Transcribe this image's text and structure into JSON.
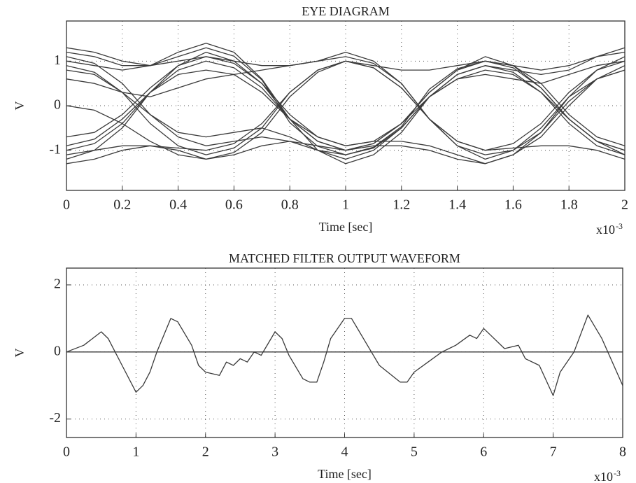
{
  "chart_data": [
    {
      "type": "line",
      "title": "EYE DIAGRAM",
      "x_label": "Time [sec]",
      "y_label": "V",
      "x_scale_base": "x10",
      "x_scale_exponent": "-3",
      "color": "#3a3a3a",
      "grid": true,
      "xlim": [
        0,
        2
      ],
      "ylim": [
        -1.9,
        1.9
      ],
      "xticks": [
        0,
        0.2,
        0.4,
        0.6,
        0.8,
        1,
        1.2,
        1.4,
        1.6,
        1.8,
        2
      ],
      "yticks": [
        -1,
        0,
        1
      ],
      "x": [
        0,
        0.1,
        0.2,
        0.3,
        0.4,
        0.5,
        0.6,
        0.7,
        0.8,
        0.9,
        1,
        1.1,
        1.2,
        1.3,
        1.4,
        1.5,
        1.6,
        1.7,
        1.8,
        1.9,
        2
      ],
      "series": [
        {
          "values": [
            1.2,
            1.1,
            0.9,
            0.9,
            1.1,
            1.3,
            1.11,
            0.58,
            -0.38,
            -0.91,
            -1.1,
            -0.93,
            -0.47,
            0.37,
            0.83,
            1.0,
            0.9,
            0.8,
            0.9,
            1.1,
            1.3
          ]
        },
        {
          "values": [
            -1.0,
            -0.85,
            -0.4,
            0.3,
            0.8,
            1.0,
            0.85,
            0.4,
            -0.3,
            -0.8,
            -1.0,
            -0.85,
            -0.4,
            0.3,
            0.8,
            1.1,
            0.9,
            0.4,
            -0.3,
            -0.8,
            -1.0
          ]
        },
        {
          "values": [
            0.9,
            0.75,
            0.3,
            -0.4,
            -0.9,
            -1.1,
            -0.95,
            -0.5,
            0.3,
            0.8,
            1.0,
            0.85,
            0.4,
            -0.3,
            -0.8,
            -1.0,
            -0.85,
            -0.4,
            0.3,
            0.8,
            1.0
          ]
        },
        {
          "values": [
            -1.3,
            -1.2,
            -1.0,
            -0.9,
            -1.0,
            -1.2,
            -1.05,
            -0.6,
            0.2,
            0.75,
            1.0,
            0.9,
            0.8,
            0.8,
            0.9,
            1.0,
            0.85,
            0.4,
            -0.3,
            -0.8,
            -1.1
          ]
        },
        {
          "values": [
            0.8,
            0.7,
            0.3,
            -0.2,
            -0.6,
            -0.7,
            -0.6,
            -0.5,
            -0.7,
            -1.0,
            -1.2,
            -1.0,
            -0.5,
            0.2,
            0.6,
            0.7,
            0.6,
            0.5,
            0.7,
            0.9,
            1.0
          ]
        },
        {
          "values": [
            1.0,
            0.9,
            0.8,
            0.9,
            1.2,
            1.4,
            1.2,
            0.6,
            -0.3,
            -1.0,
            -1.3,
            -1.1,
            -0.6,
            0.2,
            0.7,
            0.9,
            0.8,
            0.7,
            0.8,
            1.1,
            1.2
          ]
        },
        {
          "values": [
            -0.7,
            -0.6,
            -0.2,
            0.4,
            0.9,
            1.1,
            1.0,
            0.9,
            0.9,
            1.0,
            1.1,
            0.95,
            0.5,
            -0.3,
            -0.9,
            -1.2,
            -1.0,
            -0.5,
            0.2,
            0.6,
            0.8
          ]
        },
        {
          "values": [
            0.0,
            -0.1,
            -0.4,
            -0.8,
            -1.1,
            -1.2,
            -1.1,
            -0.9,
            -0.8,
            -0.9,
            -1.0,
            -0.85,
            -0.4,
            0.3,
            0.8,
            1.0,
            0.9,
            0.5,
            -0.2,
            -0.7,
            -0.9
          ]
        },
        {
          "values": [
            -1.1,
            -1.0,
            -0.9,
            -0.9,
            -0.95,
            -1.0,
            -0.85,
            -0.4,
            0.3,
            0.8,
            1.0,
            0.85,
            0.4,
            -0.3,
            -0.8,
            -1.0,
            -0.95,
            -0.9,
            -0.9,
            -1.0,
            -1.2
          ]
        },
        {
          "values": [
            1.1,
            0.95,
            0.5,
            -0.2,
            -0.7,
            -0.9,
            -0.8,
            -0.7,
            -0.8,
            -1.0,
            -1.1,
            -0.95,
            -0.5,
            0.2,
            0.7,
            0.9,
            0.75,
            0.3,
            -0.4,
            -0.9,
            -1.1
          ]
        },
        {
          "values": [
            -0.9,
            -0.75,
            -0.3,
            0.3,
            0.7,
            0.8,
            0.7,
            0.3,
            -0.3,
            -0.7,
            -0.9,
            -0.8,
            -0.8,
            -0.9,
            -1.1,
            -1.3,
            -1.1,
            -0.6,
            0.2,
            0.8,
            1.1
          ]
        },
        {
          "values": [
            0.6,
            0.5,
            0.3,
            0.2,
            0.4,
            0.6,
            0.7,
            0.8,
            0.9,
            1.0,
            1.2,
            1.0,
            0.5,
            -0.3,
            -0.9,
            -1.1,
            -1.0,
            -0.6,
            0.1,
            0.6,
            0.8
          ]
        },
        {
          "values": [
            -1.2,
            -1.0,
            -0.5,
            0.3,
            0.9,
            1.2,
            1.0,
            0.5,
            -0.2,
            -0.7,
            -0.9,
            -0.8,
            -0.4,
            0.2,
            0.6,
            0.8,
            0.7,
            0.3,
            -0.3,
            -0.8,
            -1.0
          ]
        },
        {
          "values": [
            1.3,
            1.2,
            1.0,
            0.9,
            1.0,
            1.1,
            0.95,
            0.5,
            -0.3,
            -0.8,
            -1.0,
            -0.9,
            -0.9,
            -1.0,
            -1.2,
            -1.3,
            -1.1,
            -0.7,
            0.0,
            0.6,
            0.9
          ]
        }
      ]
    },
    {
      "type": "line",
      "title": "MATCHED FILTER OUTPUT WAVEFORM",
      "x_label": "Time [sec]",
      "y_label": "V",
      "x_scale_base": "x10",
      "x_scale_exponent": "-3",
      "color": "#3a3a3a",
      "grid": true,
      "reference_line": 0,
      "xlim": [
        0,
        8
      ],
      "ylim": [
        -2.55,
        2.5
      ],
      "xticks": [
        0,
        1,
        2,
        3,
        4,
        5,
        6,
        7,
        8
      ],
      "yticks": [
        -2,
        0,
        2
      ],
      "x": [
        0,
        0.25,
        0.5,
        0.6,
        0.8,
        1.0,
        1.1,
        1.2,
        1.3,
        1.5,
        1.6,
        1.8,
        1.9,
        2.0,
        2.2,
        2.3,
        2.4,
        2.5,
        2.6,
        2.7,
        2.8,
        3.0,
        3.1,
        3.2,
        3.4,
        3.5,
        3.6,
        3.7,
        3.8,
        4.0,
        4.1,
        4.3,
        4.5,
        4.8,
        4.9,
        5.0,
        5.2,
        5.4,
        5.5,
        5.6,
        5.8,
        5.9,
        6.0,
        6.1,
        6.3,
        6.5,
        6.6,
        6.8,
        7.0,
        7.1,
        7.3,
        7.5,
        7.7,
        8.0
      ],
      "values": [
        0,
        0.2,
        0.6,
        0.4,
        -0.4,
        -1.2,
        -1.0,
        -0.6,
        0.0,
        1.0,
        0.9,
        0.2,
        -0.4,
        -0.6,
        -0.7,
        -0.3,
        -0.4,
        -0.2,
        -0.3,
        0.0,
        -0.1,
        0.6,
        0.4,
        -0.1,
        -0.8,
        -0.9,
        -0.9,
        -0.3,
        0.4,
        1.0,
        1.0,
        0.3,
        -0.4,
        -0.9,
        -0.9,
        -0.6,
        -0.3,
        0.0,
        0.1,
        0.2,
        0.5,
        0.4,
        0.7,
        0.5,
        0.1,
        0.2,
        -0.2,
        -0.4,
        -1.3,
        -0.6,
        0.0,
        1.1,
        0.4,
        -1.0
      ]
    }
  ]
}
